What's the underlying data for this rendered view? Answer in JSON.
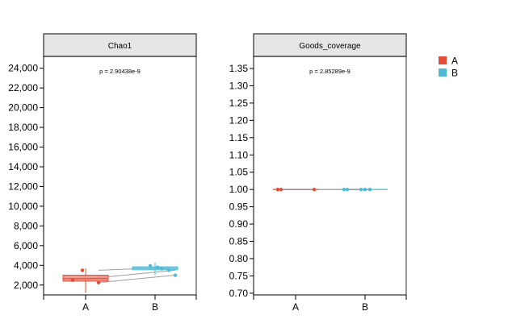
{
  "legend": [
    {
      "label": "A",
      "color": "#e64b35"
    },
    {
      "label": "B",
      "color": "#4dbbd5"
    }
  ],
  "chart_data": [
    {
      "type": "box",
      "title": "Chao1",
      "annotation": "p = 2.90438e-9",
      "categories": [
        "A",
        "B"
      ],
      "ylim": [
        1000,
        25200
      ],
      "yticks": [
        2000,
        4000,
        6000,
        8000,
        10000,
        12000,
        14000,
        16000,
        18000,
        20000,
        22000,
        24000
      ],
      "yticklabels": [
        "2,000",
        "4,000",
        "6,000",
        "8,000",
        "10,000",
        "12,000",
        "14,000",
        "16,000",
        "18,000",
        "20,000",
        "22,000",
        "24,000"
      ],
      "boxes": [
        {
          "group": "A",
          "min": 1200,
          "q1": 2400,
          "median": 2650,
          "q3": 3000,
          "max": 3700
        },
        {
          "group": "B",
          "min": 3000,
          "q1": 3550,
          "median": 3700,
          "q3": 3850,
          "max": 4300
        }
      ],
      "points": {
        "A": [
          2250,
          2500,
          3500
        ],
        "B": [
          3000,
          3500,
          3650,
          3800,
          3950
        ]
      },
      "paired_lines": [
        [
          3500,
          3800
        ],
        [
          2500,
          3500
        ],
        [
          2250,
          3000
        ]
      ]
    },
    {
      "type": "box",
      "title": "Goods_coverage",
      "annotation": "p = 2.85289e-9",
      "categories": [
        "A",
        "B"
      ],
      "ylim": [
        0.695,
        1.385
      ],
      "yticks": [
        0.7,
        0.75,
        0.8,
        0.85,
        0.9,
        0.95,
        1.0,
        1.05,
        1.1,
        1.15,
        1.2,
        1.25,
        1.3,
        1.35
      ],
      "yticklabels": [
        "0.70",
        "0.75",
        "0.80",
        "0.85",
        "0.90",
        "0.95",
        "1.00",
        "1.05",
        "1.10",
        "1.15",
        "1.20",
        "1.25",
        "1.30",
        "1.35"
      ],
      "boxes": [
        {
          "group": "A",
          "min": 1.0,
          "q1": 1.0,
          "median": 1.0,
          "q3": 1.0,
          "max": 1.0
        },
        {
          "group": "B",
          "min": 1.0,
          "q1": 1.0,
          "median": 1.0,
          "q3": 1.0,
          "max": 1.0
        }
      ],
      "points": {
        "A": [
          1.0,
          1.0,
          1.0
        ],
        "B": [
          1.0,
          1.0,
          1.0,
          1.0,
          1.0
        ]
      },
      "paired_lines": []
    }
  ]
}
